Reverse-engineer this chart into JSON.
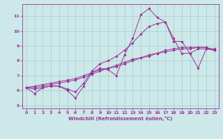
{
  "xlabel": "Windchill (Refroidissement éolien,°C)",
  "ylabel": "",
  "bg_color": "#cce8e8",
  "line_color": "#993399",
  "xlim": [
    -0.5,
    23.5
  ],
  "ylim": [
    4.8,
    11.8
  ],
  "yticks": [
    5,
    6,
    7,
    8,
    9,
    10,
    11
  ],
  "xticks": [
    0,
    1,
    2,
    3,
    4,
    5,
    6,
    7,
    8,
    9,
    10,
    11,
    12,
    13,
    14,
    15,
    16,
    17,
    18,
    19,
    20,
    21,
    22,
    23
  ],
  "series": [
    [
      6.2,
      5.8,
      6.2,
      6.3,
      6.3,
      6.0,
      5.5,
      6.3,
      7.2,
      7.5,
      7.4,
      7.0,
      8.4,
      9.5,
      11.1,
      11.5,
      10.9,
      10.6,
      9.3,
      9.3,
      8.5,
      7.5,
      8.8,
      8.7
    ],
    [
      6.2,
      6.1,
      6.2,
      6.3,
      6.3,
      6.1,
      5.9,
      6.5,
      7.3,
      7.8,
      8.0,
      8.3,
      8.7,
      9.2,
      9.8,
      10.3,
      10.5,
      10.6,
      9.5,
      8.5,
      8.5,
      8.8,
      8.8,
      8.8
    ],
    [
      6.2,
      6.2,
      6.3,
      6.4,
      6.5,
      6.6,
      6.7,
      6.9,
      7.1,
      7.3,
      7.5,
      7.6,
      7.8,
      8.0,
      8.2,
      8.3,
      8.5,
      8.6,
      8.7,
      8.8,
      8.8,
      8.9,
      8.9,
      8.7
    ],
    [
      6.2,
      6.3,
      6.4,
      6.5,
      6.6,
      6.7,
      6.8,
      7.0,
      7.2,
      7.4,
      7.5,
      7.7,
      7.9,
      8.1,
      8.2,
      8.4,
      8.5,
      8.7,
      8.8,
      8.9,
      8.9,
      8.9,
      8.9,
      8.7
    ]
  ]
}
